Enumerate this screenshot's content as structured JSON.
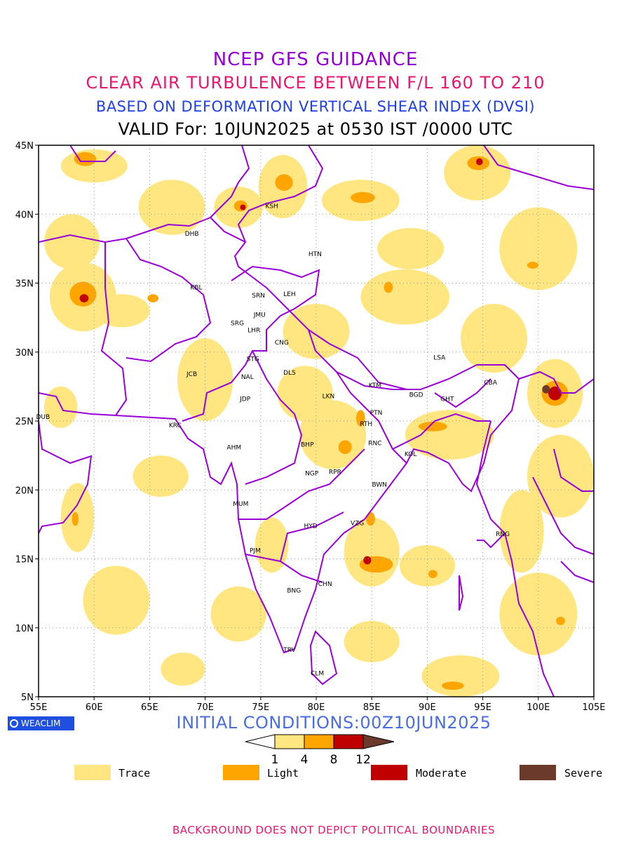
{
  "title_lines": {
    "line1": "NCEP GFS GUIDANCE",
    "line2": "CLEAR AIR TURBULENCE BETWEEN F/L 160 TO 210",
    "line3": "BASED ON DEFORMATION VERTICAL SHEAR INDEX (DVSI)",
    "line4": "VALID For: 10JUN2025 at 0530 IST /0000 UTC"
  },
  "axes": {
    "lon_ticks": [
      "55E",
      "60E",
      "65E",
      "70E",
      "75E",
      "80E",
      "85E",
      "90E",
      "95E",
      "100E",
      "105E"
    ],
    "lat_ticks": [
      "45N",
      "40N",
      "35N",
      "30N",
      "25N",
      "20N",
      "15N",
      "10N",
      "5N"
    ],
    "lon_range": [
      55,
      105
    ],
    "lat_range": [
      5,
      45
    ],
    "grid": "dotted"
  },
  "stations": [
    {
      "code": "KSH",
      "lon": 76.0,
      "lat": 40.6
    },
    {
      "code": "DHB",
      "lon": 68.8,
      "lat": 38.6
    },
    {
      "code": "HTN",
      "lon": 79.9,
      "lat": 37.1
    },
    {
      "code": "KBL",
      "lon": 69.2,
      "lat": 34.7
    },
    {
      "code": "SRN",
      "lon": 74.8,
      "lat": 34.1
    },
    {
      "code": "LEH",
      "lon": 77.6,
      "lat": 34.2
    },
    {
      "code": "JMU",
      "lon": 74.9,
      "lat": 32.7
    },
    {
      "code": "SRG",
      "lon": 72.9,
      "lat": 32.1
    },
    {
      "code": "LHR",
      "lon": 74.4,
      "lat": 31.6
    },
    {
      "code": "CNG",
      "lon": 76.9,
      "lat": 30.7
    },
    {
      "code": "STG",
      "lon": 74.3,
      "lat": 29.5
    },
    {
      "code": "LSA",
      "lon": 91.1,
      "lat": 29.6
    },
    {
      "code": "JCB",
      "lon": 68.8,
      "lat": 28.4
    },
    {
      "code": "NAL",
      "lon": 73.8,
      "lat": 28.2
    },
    {
      "code": "DLS",
      "lon": 77.6,
      "lat": 28.5
    },
    {
      "code": "KTM",
      "lon": 85.3,
      "lat": 27.6
    },
    {
      "code": "CBA",
      "lon": 95.7,
      "lat": 27.8
    },
    {
      "code": "JDP",
      "lon": 73.6,
      "lat": 26.6
    },
    {
      "code": "LKN",
      "lon": 81.1,
      "lat": 26.8
    },
    {
      "code": "BGD",
      "lon": 89.0,
      "lat": 26.9
    },
    {
      "code": "GHT",
      "lon": 91.8,
      "lat": 26.6
    },
    {
      "code": "PTN",
      "lon": 85.4,
      "lat": 25.6
    },
    {
      "code": "DUB",
      "lon": 55.4,
      "lat": 25.3
    },
    {
      "code": "KRC",
      "lon": 67.3,
      "lat": 24.7
    },
    {
      "code": "RTH",
      "lon": 84.5,
      "lat": 24.8
    },
    {
      "code": "BHP",
      "lon": 79.2,
      "lat": 23.3
    },
    {
      "code": "AHM",
      "lon": 72.6,
      "lat": 23.1
    },
    {
      "code": "RNC",
      "lon": 85.3,
      "lat": 23.4
    },
    {
      "code": "KOL",
      "lon": 88.5,
      "lat": 22.6
    },
    {
      "code": "RPR",
      "lon": 81.7,
      "lat": 21.3
    },
    {
      "code": "NGP",
      "lon": 79.6,
      "lat": 21.2
    },
    {
      "code": "BWN",
      "lon": 85.7,
      "lat": 20.4
    },
    {
      "code": "MUM",
      "lon": 73.2,
      "lat": 19.0
    },
    {
      "code": "HYD",
      "lon": 79.5,
      "lat": 17.4
    },
    {
      "code": "VZG",
      "lon": 83.7,
      "lat": 17.6
    },
    {
      "code": "RNG",
      "lon": 96.8,
      "lat": 16.8
    },
    {
      "code": "PJM",
      "lon": 74.5,
      "lat": 15.6
    },
    {
      "code": "CHN",
      "lon": 80.8,
      "lat": 13.2
    },
    {
      "code": "BNG",
      "lon": 78.0,
      "lat": 12.7
    },
    {
      "code": "TRV",
      "lon": 77.6,
      "lat": 8.4
    },
    {
      "code": "CLM",
      "lon": 80.1,
      "lat": 6.7
    }
  ],
  "colors": {
    "trace": "#ffe680",
    "light": "#ffa500",
    "moderate": "#c00000",
    "severe": "#6b3a2a",
    "boundary": "#9c00d9",
    "grid": "#999999"
  },
  "turbulence_areas": [
    {
      "level": "trace",
      "lon": 60,
      "lat": 43.5,
      "rx": 3,
      "ry": 1.2
    },
    {
      "level": "light",
      "lon": 59.2,
      "lat": 44.0,
      "rx": 1.0,
      "ry": 0.5
    },
    {
      "level": "trace",
      "lon": 77,
      "lat": 42,
      "rx": 2.2,
      "ry": 2.3
    },
    {
      "level": "light",
      "lon": 77.1,
      "lat": 42.3,
      "rx": 0.8,
      "ry": 0.6
    },
    {
      "level": "trace",
      "lon": 73,
      "lat": 40.5,
      "rx": 2.2,
      "ry": 1.5
    },
    {
      "level": "light",
      "lon": 73.2,
      "lat": 40.6,
      "rx": 0.6,
      "ry": 0.4
    },
    {
      "level": "moderate",
      "lon": 73.4,
      "lat": 40.5,
      "rx": 0.25,
      "ry": 0.2
    },
    {
      "level": "trace",
      "lon": 94.5,
      "lat": 43,
      "rx": 3.0,
      "ry": 2
    },
    {
      "level": "light",
      "lon": 94.6,
      "lat": 43.7,
      "rx": 1.0,
      "ry": 0.5
    },
    {
      "level": "moderate",
      "lon": 94.7,
      "lat": 43.8,
      "rx": 0.3,
      "ry": 0.25
    },
    {
      "level": "trace",
      "lon": 84,
      "lat": 41,
      "rx": 3.5,
      "ry": 1.5
    },
    {
      "level": "light",
      "lon": 84.2,
      "lat": 41.2,
      "rx": 1.1,
      "ry": 0.4
    },
    {
      "level": "trace",
      "lon": 59,
      "lat": 34,
      "rx": 3,
      "ry": 2.5
    },
    {
      "level": "light",
      "lon": 59.0,
      "lat": 34.2,
      "rx": 1.2,
      "ry": 0.9
    },
    {
      "level": "moderate",
      "lon": 59.1,
      "lat": 33.9,
      "rx": 0.4,
      "ry": 0.3
    },
    {
      "level": "trace",
      "lon": 101.5,
      "lat": 27,
      "rx": 2.5,
      "ry": 2.5
    },
    {
      "level": "light",
      "lon": 101.5,
      "lat": 27,
      "rx": 1.2,
      "ry": 0.9
    },
    {
      "level": "moderate",
      "lon": 101.5,
      "lat": 27,
      "rx": 0.6,
      "ry": 0.5
    },
    {
      "level": "severe",
      "lon": 100.7,
      "lat": 27.3,
      "rx": 0.35,
      "ry": 0.3
    },
    {
      "level": "trace",
      "lon": 85,
      "lat": 15.5,
      "rx": 2.5,
      "ry": 2.5
    },
    {
      "level": "light",
      "lon": 85.4,
      "lat": 14.6,
      "rx": 1.5,
      "ry": 0.6
    },
    {
      "level": "moderate",
      "lon": 84.6,
      "lat": 14.9,
      "rx": 0.35,
      "ry": 0.3
    },
    {
      "level": "light",
      "lon": 84.9,
      "lat": 17.9,
      "rx": 0.4,
      "ry": 0.5
    },
    {
      "level": "trace",
      "lon": 81.5,
      "lat": 24,
      "rx": 3,
      "ry": 2.5
    },
    {
      "level": "light",
      "lon": 82.6,
      "lat": 23.1,
      "rx": 0.6,
      "ry": 0.5
    },
    {
      "level": "light",
      "lon": 84.0,
      "lat": 25.2,
      "rx": 0.4,
      "ry": 0.6
    },
    {
      "level": "trace",
      "lon": 92,
      "lat": 24,
      "rx": 4,
      "ry": 1.8
    },
    {
      "level": "light",
      "lon": 90.5,
      "lat": 24.6,
      "rx": 1.3,
      "ry": 0.35
    },
    {
      "level": "trace",
      "lon": 93,
      "lat": 6.5,
      "rx": 3.5,
      "ry": 1.5
    },
    {
      "level": "light",
      "lon": 92.3,
      "lat": 5.8,
      "rx": 1.0,
      "ry": 0.3
    },
    {
      "level": "trace",
      "lon": 58.5,
      "lat": 18,
      "rx": 1.5,
      "ry": 2.5
    },
    {
      "level": "light",
      "lon": 58.3,
      "lat": 17.9,
      "rx": 0.3,
      "ry": 0.5
    },
    {
      "level": "trace",
      "lon": 100,
      "lat": 11,
      "rx": 3.5,
      "ry": 3
    },
    {
      "level": "light",
      "lon": 102,
      "lat": 10.5,
      "rx": 0.4,
      "ry": 0.3
    },
    {
      "level": "trace",
      "lon": 62.5,
      "lat": 33,
      "rx": 2.5,
      "ry": 1.2
    },
    {
      "level": "light",
      "lon": 65.3,
      "lat": 33.9,
      "rx": 0.5,
      "ry": 0.3
    },
    {
      "level": "trace",
      "lon": 88,
      "lat": 34,
      "rx": 4,
      "ry": 2
    },
    {
      "level": "light",
      "lon": 86.5,
      "lat": 34.7,
      "rx": 0.4,
      "ry": 0.4
    },
    {
      "level": "trace",
      "lon": 70,
      "lat": 28,
      "rx": 2.5,
      "ry": 3
    },
    {
      "level": "trace",
      "lon": 79,
      "lat": 27,
      "rx": 2.5,
      "ry": 2
    },
    {
      "level": "trace",
      "lon": 100,
      "lat": 37.5,
      "rx": 3.5,
      "ry": 3
    },
    {
      "level": "light",
      "lon": 99.5,
      "lat": 36.3,
      "rx": 0.5,
      "ry": 0.25
    },
    {
      "level": "trace",
      "lon": 66,
      "lat": 21,
      "rx": 2.5,
      "ry": 1.5
    },
    {
      "level": "trace",
      "lon": 62,
      "lat": 12,
      "rx": 3,
      "ry": 2.5
    },
    {
      "level": "trace",
      "lon": 73,
      "lat": 11,
      "rx": 2.5,
      "ry": 2
    },
    {
      "level": "trace",
      "lon": 90,
      "lat": 14.5,
      "rx": 2.5,
      "ry": 1.5
    },
    {
      "level": "light",
      "lon": 90.5,
      "lat": 13.9,
      "rx": 0.4,
      "ry": 0.3
    },
    {
      "level": "trace",
      "lon": 80,
      "lat": 31.5,
      "rx": 3,
      "ry": 2
    },
    {
      "level": "trace",
      "lon": 102,
      "lat": 21,
      "rx": 3,
      "ry": 3
    },
    {
      "level": "trace",
      "lon": 96,
      "lat": 31,
      "rx": 3,
      "ry": 2.5
    },
    {
      "level": "trace",
      "lon": 58,
      "lat": 38,
      "rx": 2.5,
      "ry": 2
    },
    {
      "level": "trace",
      "lon": 67,
      "lat": 40.5,
      "rx": 3,
      "ry": 2
    },
    {
      "level": "trace",
      "lon": 88.5,
      "lat": 37.5,
      "rx": 3,
      "ry": 1.5
    },
    {
      "level": "trace",
      "lon": 98.5,
      "lat": 17,
      "rx": 2,
      "ry": 3
    },
    {
      "level": "trace",
      "lon": 76,
      "lat": 16,
      "rx": 1.5,
      "ry": 2
    },
    {
      "level": "trace",
      "lon": 57,
      "lat": 26,
      "rx": 1.5,
      "ry": 1.5
    },
    {
      "level": "trace",
      "lon": 85,
      "lat": 9,
      "rx": 2.5,
      "ry": 1.5
    },
    {
      "level": "trace",
      "lon": 68,
      "lat": 7,
      "rx": 2,
      "ry": 1.2
    }
  ],
  "footer": {
    "logo_text": "WEACLIM",
    "init_text": "INITIAL CONDITIONS:00Z10JUN2025",
    "colorbar_ticks": [
      "1",
      "4",
      "8",
      "12"
    ],
    "legend": [
      {
        "label": "Trace",
        "level": "trace"
      },
      {
        "label": "Light",
        "level": "light"
      },
      {
        "label": "Moderate",
        "level": "moderate"
      },
      {
        "label": "Severe",
        "level": "severe"
      }
    ],
    "disclaimer": "BACKGROUND DOES NOT DEPICT POLITICAL BOUNDARIES"
  }
}
